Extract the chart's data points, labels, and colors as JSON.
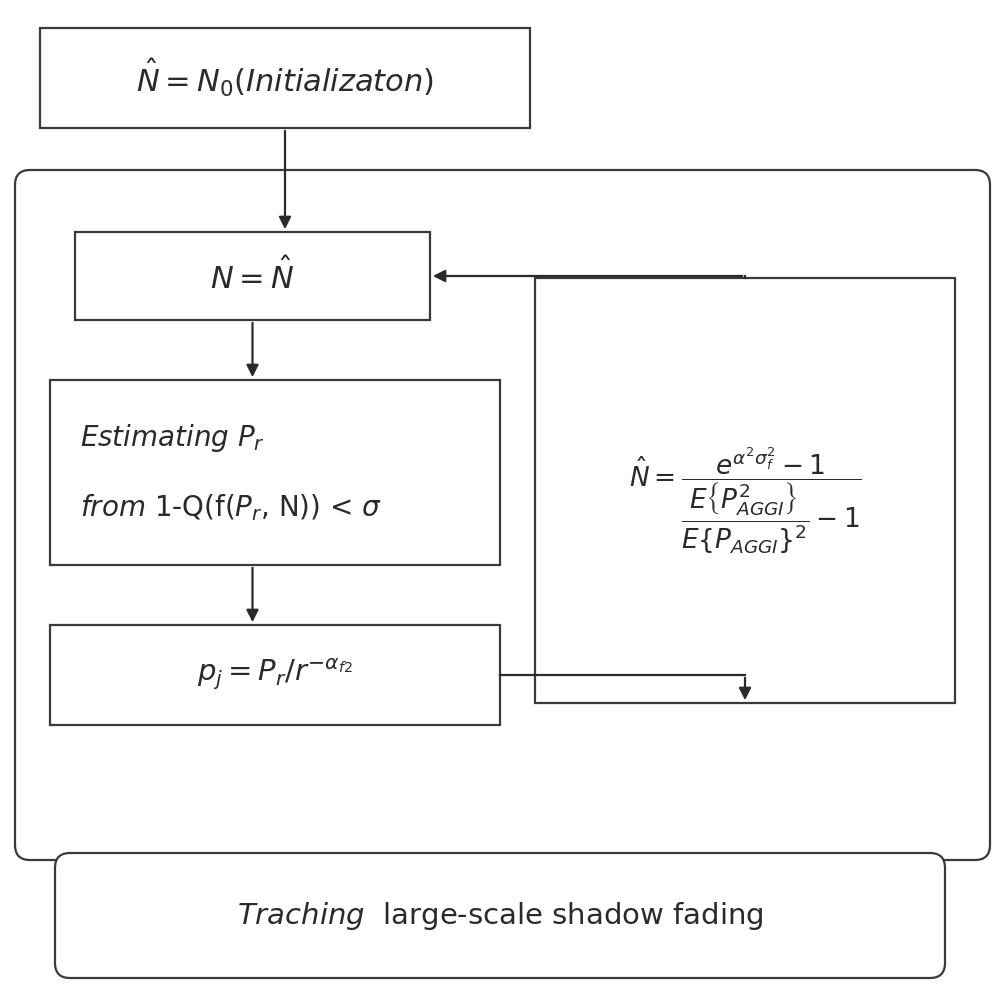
{
  "bg_color": "#ffffff",
  "border_color": "#3a3a3a",
  "text_color": "#2a2a2a",
  "arrow_color": "#2a2a2a",
  "fig_width": 10.0,
  "fig_height": 9.99,
  "lw": 1.6
}
